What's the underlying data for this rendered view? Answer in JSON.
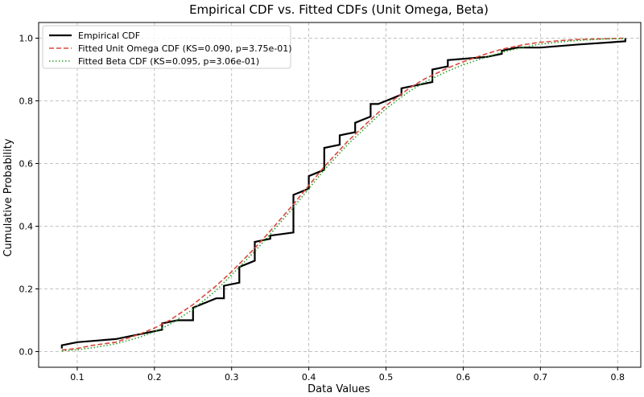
{
  "chart_data": {
    "type": "line",
    "title": "Empirical CDF vs. Fitted CDFs (Unit Omega, Beta)",
    "xlabel": "Data Values",
    "ylabel": "Cumulative Probability",
    "xlim": [
      0.05,
      0.83
    ],
    "ylim": [
      -0.05,
      1.05
    ],
    "xticks": [
      "0.1",
      "0.2",
      "0.3",
      "0.4",
      "0.5",
      "0.6",
      "0.7",
      "0.8"
    ],
    "yticks": [
      "0.0",
      "0.2",
      "0.4",
      "0.6",
      "0.8",
      "1.0"
    ],
    "grid": true,
    "legend_position": "top-left",
    "series": [
      {
        "name": "Empirical CDF",
        "style": "solid",
        "color": "#000000",
        "x": [
          0.08,
          0.08,
          0.1,
          0.15,
          0.21,
          0.21,
          0.23,
          0.25,
          0.25,
          0.26,
          0.27,
          0.28,
          0.29,
          0.29,
          0.31,
          0.31,
          0.32,
          0.33,
          0.33,
          0.35,
          0.35,
          0.38,
          0.38,
          0.39,
          0.4,
          0.4,
          0.41,
          0.42,
          0.42,
          0.44,
          0.44,
          0.46,
          0.46,
          0.47,
          0.48,
          0.48,
          0.49,
          0.5,
          0.51,
          0.52,
          0.52,
          0.56,
          0.56,
          0.58,
          0.58,
          0.63,
          0.65,
          0.65,
          0.67,
          0.7,
          0.75,
          0.81,
          0.81
        ],
        "y": [
          0.01,
          0.02,
          0.03,
          0.04,
          0.07,
          0.09,
          0.1,
          0.1,
          0.14,
          0.15,
          0.16,
          0.17,
          0.17,
          0.21,
          0.22,
          0.27,
          0.28,
          0.29,
          0.35,
          0.36,
          0.37,
          0.38,
          0.5,
          0.51,
          0.52,
          0.56,
          0.57,
          0.58,
          0.65,
          0.66,
          0.69,
          0.7,
          0.73,
          0.74,
          0.75,
          0.79,
          0.79,
          0.8,
          0.81,
          0.82,
          0.84,
          0.86,
          0.9,
          0.91,
          0.93,
          0.94,
          0.95,
          0.96,
          0.97,
          0.97,
          0.98,
          0.99,
          1.0
        ]
      },
      {
        "name": "Fitted Unit Omega CDF (KS=0.090, p=3.75e-01)",
        "style": "dashed",
        "color": "#d9483b",
        "x": [
          0.08,
          0.1,
          0.12,
          0.15,
          0.18,
          0.2,
          0.22,
          0.25,
          0.28,
          0.3,
          0.33,
          0.35,
          0.38,
          0.4,
          0.42,
          0.45,
          0.48,
          0.5,
          0.53,
          0.55,
          0.58,
          0.6,
          0.63,
          0.65,
          0.68,
          0.7,
          0.73,
          0.75,
          0.78,
          0.81
        ],
        "y": [
          0.005,
          0.01,
          0.02,
          0.03,
          0.055,
          0.075,
          0.1,
          0.15,
          0.21,
          0.255,
          0.33,
          0.385,
          0.47,
          0.53,
          0.59,
          0.67,
          0.74,
          0.785,
          0.84,
          0.87,
          0.905,
          0.925,
          0.95,
          0.965,
          0.98,
          0.987,
          0.993,
          0.996,
          0.998,
          1.0
        ]
      },
      {
        "name": "Fitted Beta CDF (KS=0.095, p=3.06e-01)",
        "style": "dotted",
        "color": "#2ca02c",
        "x": [
          0.08,
          0.1,
          0.12,
          0.15,
          0.18,
          0.2,
          0.22,
          0.25,
          0.28,
          0.3,
          0.33,
          0.35,
          0.38,
          0.4,
          0.42,
          0.45,
          0.48,
          0.5,
          0.53,
          0.55,
          0.58,
          0.6,
          0.63,
          0.65,
          0.68,
          0.7,
          0.73,
          0.75,
          0.78,
          0.81
        ],
        "y": [
          0.002,
          0.006,
          0.012,
          0.025,
          0.045,
          0.063,
          0.087,
          0.135,
          0.195,
          0.245,
          0.32,
          0.375,
          0.46,
          0.52,
          0.58,
          0.66,
          0.73,
          0.775,
          0.83,
          0.86,
          0.895,
          0.915,
          0.94,
          0.955,
          0.972,
          0.981,
          0.989,
          0.993,
          0.997,
          0.999
        ]
      }
    ]
  }
}
